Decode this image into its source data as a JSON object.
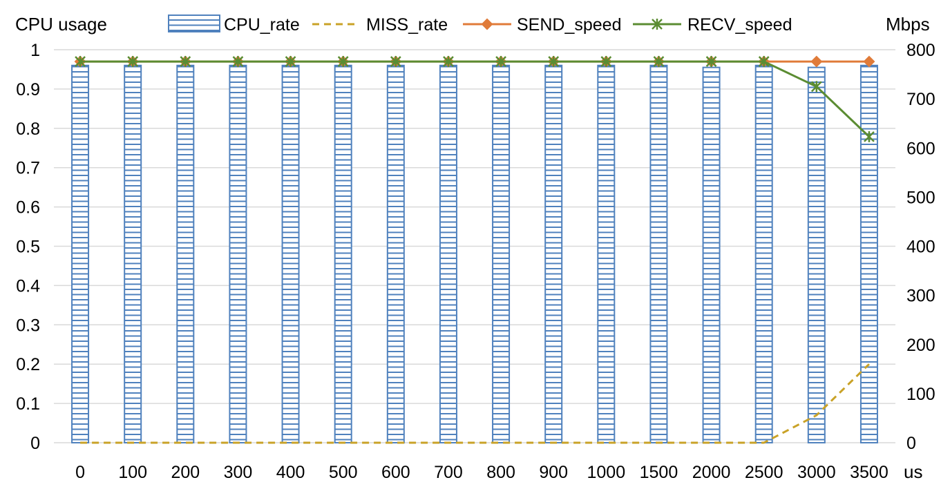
{
  "chart_data": {
    "type": "bar",
    "categories": [
      "0",
      "100",
      "200",
      "300",
      "400",
      "500",
      "600",
      "700",
      "800",
      "900",
      "1000",
      "1500",
      "2000",
      "2500",
      "3000",
      "3500"
    ],
    "x_unit": "us",
    "y_left": {
      "label": "CPU usage",
      "range": [
        0,
        1
      ],
      "ticks": [
        "0",
        "0.1",
        "0.2",
        "0.3",
        "0.4",
        "0.5",
        "0.6",
        "0.7",
        "0.8",
        "0.9",
        "1"
      ]
    },
    "y_right": {
      "label": "Mbps",
      "range": [
        0,
        800
      ],
      "ticks": [
        "0",
        "100",
        "200",
        "300",
        "400",
        "500",
        "600",
        "700",
        "800"
      ]
    },
    "series": [
      {
        "name": "CPU_rate",
        "type": "bar",
        "axis": "left",
        "color": "#4f81bd",
        "values": [
          0.96,
          0.96,
          0.96,
          0.96,
          0.96,
          0.96,
          0.96,
          0.96,
          0.96,
          0.96,
          0.96,
          0.96,
          0.955,
          0.96,
          0.955,
          0.96
        ]
      },
      {
        "name": "MISS_rate",
        "type": "line",
        "style": "dashed",
        "axis": "left",
        "color": "#c9a227",
        "values": [
          0,
          0,
          0,
          0,
          0,
          0,
          0,
          0,
          0,
          0,
          0,
          0,
          0,
          0,
          0.07,
          0.2
        ]
      },
      {
        "name": "SEND_speed",
        "type": "line",
        "marker": "diamond",
        "axis": "right",
        "color": "#e07b39",
        "values": [
          776,
          776,
          776,
          776,
          776,
          776,
          776,
          776,
          776,
          776,
          776,
          776,
          776,
          776,
          776,
          776
        ]
      },
      {
        "name": "RECV_speed",
        "type": "line",
        "marker": "asterisk",
        "axis": "right",
        "color": "#5b8c32",
        "values": [
          776,
          776,
          776,
          776,
          776,
          776,
          776,
          776,
          776,
          776,
          776,
          776,
          776,
          776,
          725,
          623
        ]
      }
    ],
    "legend": "top",
    "grid": true
  }
}
